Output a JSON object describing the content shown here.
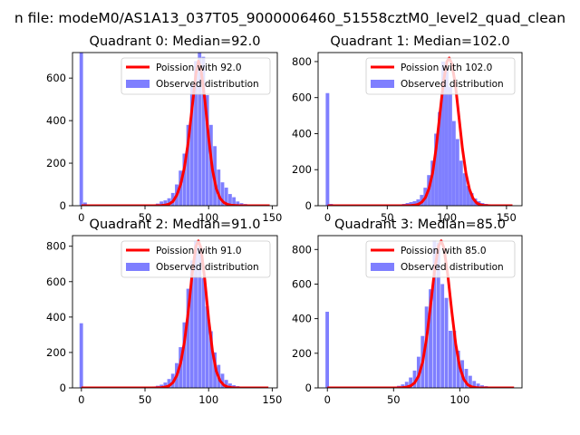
{
  "figure": {
    "suptitle": "n file: modeM0/AS1A13_037T05_9000006460_51558cztM0_level2_quad_clean"
  },
  "colors": {
    "poisson_line": "#ff0000",
    "histogram_fill": "#7f7fff",
    "axes": "#000000",
    "legend_border": "#cccccc"
  },
  "chart_data": [
    {
      "type": "bar",
      "title": "Quadrant 0: Median=92.0",
      "legend": [
        {
          "label": "Poission with 92.0",
          "kind": "line"
        },
        {
          "label": "Observed distribution",
          "kind": "patch"
        }
      ],
      "legend_position": "top-right",
      "xlim": [
        -7,
        154
      ],
      "ylim": [
        0,
        720
      ],
      "xticks": [
        0,
        50,
        100,
        150
      ],
      "xtick_labels": [
        "0",
        "50",
        "100",
        "150"
      ],
      "yticks": [
        0,
        200,
        400,
        600
      ],
      "ytick_labels": [
        "0",
        "200",
        "400",
        "600"
      ],
      "bin_width": 2.95,
      "bins": {
        "x": [
          0,
          3,
          57,
          60,
          63,
          66,
          69,
          72,
          75,
          78,
          81,
          84,
          87,
          90,
          93,
          96,
          99,
          102,
          105,
          108,
          111,
          114,
          117,
          120,
          123,
          126,
          129,
          132,
          135
        ],
        "counts": [
          720,
          15,
          5,
          10,
          20,
          25,
          35,
          60,
          100,
          165,
          245,
          380,
          570,
          680,
          720,
          700,
          520,
          380,
          280,
          170,
          110,
          85,
          55,
          40,
          20,
          12,
          8,
          5,
          3
        ]
      },
      "poisson": {
        "lambda": 92.0,
        "x": [
          0,
          57,
          63,
          66,
          69,
          72,
          75,
          78,
          81,
          84,
          87,
          90,
          92,
          94,
          97,
          100,
          103,
          106,
          109,
          112,
          115,
          118,
          121,
          124,
          130,
          148
        ],
        "y": [
          0,
          0,
          1,
          3,
          8,
          20,
          50,
          100,
          180,
          300,
          460,
          620,
          680,
          640,
          500,
          320,
          170,
          80,
          35,
          15,
          6,
          2,
          1,
          0,
          0,
          0
        ]
      }
    },
    {
      "type": "bar",
      "title": "Quadrant 1: Median=102.0",
      "legend": [
        {
          "label": "Poission with 102.0",
          "kind": "line"
        },
        {
          "label": "Observed distribution",
          "kind": "patch"
        }
      ],
      "legend_position": "top-right",
      "xlim": [
        -8,
        163
      ],
      "ylim": [
        0,
        850
      ],
      "xticks": [
        0,
        50,
        100,
        150
      ],
      "xtick_labels": [
        "0",
        "50",
        "100",
        "150"
      ],
      "yticks": [
        0,
        200,
        400,
        600,
        800
      ],
      "ytick_labels": [
        "0",
        "200",
        "400",
        "600",
        "800"
      ],
      "bin_width": 3.2,
      "bins": {
        "x": [
          0,
          3,
          64,
          67,
          70,
          73,
          76,
          79,
          82,
          85,
          88,
          91,
          94,
          97,
          100,
          103,
          106,
          109,
          112,
          115,
          118,
          121,
          124,
          127,
          130,
          133,
          136,
          139,
          142,
          145
        ],
        "counts": [
          625,
          10,
          10,
          15,
          20,
          25,
          35,
          60,
          100,
          170,
          250,
          400,
          520,
          800,
          770,
          660,
          470,
          370,
          250,
          180,
          110,
          70,
          40,
          25,
          15,
          10,
          6,
          4,
          3,
          2
        ]
      },
      "poisson": {
        "lambda": 102.0,
        "x": [
          0,
          64,
          70,
          73,
          76,
          79,
          82,
          85,
          88,
          91,
          94,
          97,
          100,
          102,
          104,
          107,
          110,
          113,
          116,
          119,
          122,
          125,
          128,
          131,
          137,
          155
        ],
        "y": [
          0,
          0,
          1,
          3,
          8,
          20,
          45,
          95,
          180,
          320,
          500,
          680,
          800,
          820,
          790,
          680,
          500,
          320,
          180,
          90,
          40,
          15,
          5,
          1,
          0,
          0
        ]
      }
    },
    {
      "type": "bar",
      "title": "Quadrant 2: Median=91.0",
      "legend": [
        {
          "label": "Poission with 91.0",
          "kind": "line"
        },
        {
          "label": "Observed distribution",
          "kind": "patch"
        }
      ],
      "legend_position": "top-right",
      "xlim": [
        -7,
        154
      ],
      "ylim": [
        0,
        860
      ],
      "xticks": [
        0,
        50,
        100,
        150
      ],
      "xtick_labels": [
        "0",
        "50",
        "100",
        "150"
      ],
      "yticks": [
        0,
        200,
        400,
        600,
        800
      ],
      "ytick_labels": [
        "0",
        "200",
        "400",
        "600",
        "800"
      ],
      "bin_width": 2.95,
      "bins": {
        "x": [
          0,
          3,
          54,
          57,
          60,
          63,
          66,
          69,
          72,
          75,
          78,
          81,
          84,
          87,
          90,
          93,
          96,
          99,
          102,
          105,
          108,
          111,
          114,
          117,
          120,
          123,
          126,
          129,
          132
        ],
        "counts": [
          365,
          5,
          5,
          8,
          12,
          18,
          30,
          50,
          80,
          140,
          230,
          370,
          560,
          720,
          830,
          800,
          620,
          460,
          320,
          200,
          130,
          80,
          45,
          25,
          15,
          10,
          6,
          4,
          2
        ]
      },
      "poisson": {
        "lambda": 91.0,
        "x": [
          0,
          57,
          63,
          66,
          69,
          72,
          75,
          78,
          81,
          84,
          87,
          90,
          92,
          94,
          97,
          100,
          103,
          106,
          109,
          112,
          115,
          118,
          121,
          127,
          147
        ],
        "y": [
          0,
          0,
          2,
          5,
          12,
          30,
          70,
          140,
          260,
          430,
          640,
          800,
          830,
          790,
          610,
          390,
          210,
          95,
          40,
          15,
          5,
          2,
          0,
          0,
          0
        ]
      }
    },
    {
      "type": "bar",
      "title": "Quadrant 3: Median=85.0",
      "legend": [
        {
          "label": "Poission with 85.0",
          "kind": "line"
        },
        {
          "label": "Observed distribution",
          "kind": "patch"
        }
      ],
      "legend_position": "top-right",
      "xlim": [
        -7,
        147
      ],
      "ylim": [
        0,
        880
      ],
      "xticks": [
        0,
        50,
        100
      ],
      "xtick_labels": [
        "0",
        "50",
        "100"
      ],
      "yticks": [
        0,
        200,
        400,
        600,
        800
      ],
      "ytick_labels": [
        "0",
        "200",
        "400",
        "600",
        "800"
      ],
      "bin_width": 2.85,
      "bins": {
        "x": [
          0,
          3,
          51,
          54,
          57,
          60,
          63,
          66,
          69,
          72,
          75,
          78,
          81,
          84,
          87,
          90,
          93,
          96,
          99,
          102,
          105,
          108,
          111,
          114,
          117,
          120,
          123,
          126
        ],
        "counts": [
          440,
          5,
          8,
          12,
          20,
          35,
          60,
          100,
          180,
          300,
          470,
          570,
          850,
          840,
          600,
          520,
          330,
          330,
          215,
          160,
          110,
          70,
          40,
          25,
          15,
          10,
          6,
          3
        ]
      },
      "poisson": {
        "lambda": 85.0,
        "x": [
          0,
          52,
          57,
          60,
          63,
          66,
          69,
          72,
          75,
          78,
          81,
          84,
          86,
          88,
          91,
          94,
          97,
          100,
          103,
          106,
          109,
          112,
          115,
          121,
          141
        ],
        "y": [
          0,
          0,
          2,
          5,
          12,
          30,
          70,
          150,
          290,
          480,
          680,
          820,
          850,
          810,
          650,
          440,
          250,
          120,
          50,
          18,
          6,
          2,
          0,
          0,
          0
        ]
      }
    }
  ]
}
